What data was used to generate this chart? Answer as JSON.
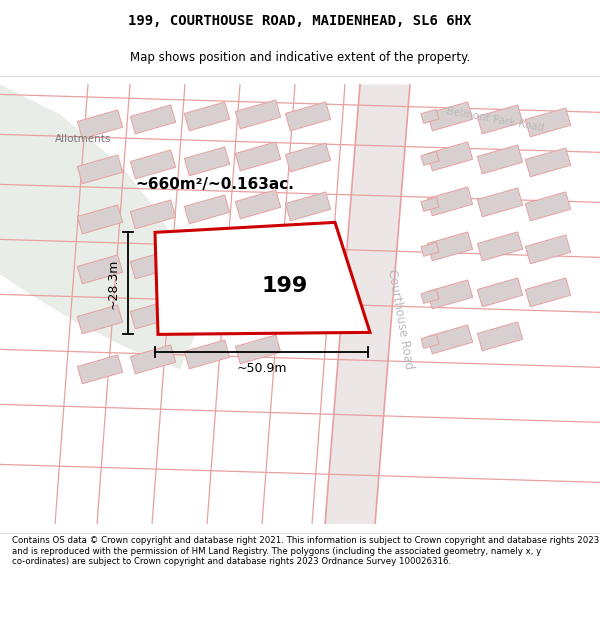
{
  "title_line1": "199, COURTHOUSE ROAD, MAIDENHEAD, SL6 6HX",
  "title_line2": "Map shows position and indicative extent of the property.",
  "footer_text": "Contains OS data © Crown copyright and database right 2021. This information is subject to Crown copyright and database rights 2023 and is reproduced with the permission of HM Land Registry. The polygons (including the associated geometry, namely x, y co-ordinates) are subject to Crown copyright and database rights 2023 Ordnance Survey 100026316.",
  "highlight_color": "#cc0000",
  "label_199": "199",
  "area_label": "~660m²/~0.163ac.",
  "width_label": "~50.9m",
  "height_label": "~28.3m",
  "road_label": "Courthouse Road",
  "belmont_label": "Belmont Park Road",
  "allotments_label": "Allotments",
  "map_bg": "#f7f2f2",
  "allot_color": "#e8ede8",
  "road_fill": "#ece4e4",
  "bld_fill": "#d8d0d0",
  "pink_line": "#e8a0a0",
  "gray_line": "#c8b8b8"
}
